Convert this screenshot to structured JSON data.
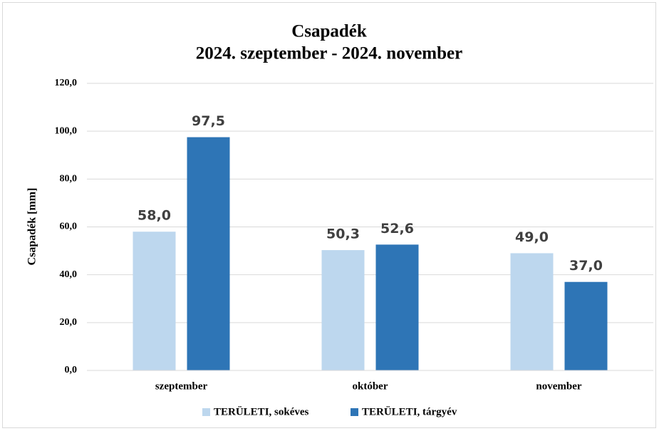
{
  "chart_data": {
    "type": "bar",
    "title": "Csapadék",
    "subtitle": "2024. szeptember - 2024. november",
    "y_label": "Csapadék [mm]",
    "categories": [
      "szeptember",
      "október",
      "november"
    ],
    "series": [
      {
        "name": "TERÜLETI, sokéves",
        "color": "#bdd7ee",
        "values": [
          58.0,
          50.3,
          49.0
        ],
        "value_labels": [
          "58,0",
          "50,3",
          "49,0"
        ]
      },
      {
        "name": "TERÜLETI, tárgyév",
        "color": "#2e75b6",
        "values": [
          97.5,
          52.6,
          37.0
        ],
        "value_labels": [
          "97,5",
          "52,6",
          "37,0"
        ]
      }
    ],
    "ylim": [
      0,
      120
    ],
    "yticks": [
      {
        "value": 0,
        "label": "0,0"
      },
      {
        "value": 20,
        "label": "20,0"
      },
      {
        "value": 40,
        "label": "40,0"
      },
      {
        "value": 60,
        "label": "60,0"
      },
      {
        "value": 80,
        "label": "80,0"
      },
      {
        "value": 100,
        "label": "100,0"
      },
      {
        "value": 120,
        "label": "120,0"
      }
    ],
    "grid": true,
    "legend": "bottom"
  }
}
